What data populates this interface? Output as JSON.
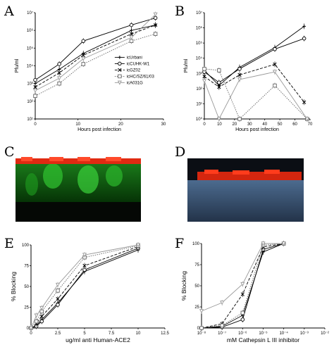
{
  "panel_labels": {
    "A": "A",
    "B": "B",
    "C": "C",
    "D": "D",
    "E": "E",
    "F": "F"
  },
  "chart_data": [
    {
      "panel": "A",
      "type": "line",
      "xlabel": "Hours post infection",
      "ylabel": "Pfu/ml",
      "y_scale": "log",
      "xlim": [
        0,
        32
      ],
      "ylim_exp": [
        1,
        7
      ],
      "xticks": [
        "0",
        "10",
        "20",
        "30"
      ],
      "yticks": [
        "10¹",
        "10²",
        "10³",
        "10⁴",
        "10⁵",
        "10⁶",
        "10⁷"
      ],
      "legend": [
        "icUrbani",
        "icCUHK-W1",
        "icGZ02",
        "icHC/SZ/61/03",
        "icA031G"
      ],
      "legend_position": "center-right",
      "series": [
        {
          "name": "icUrbani",
          "style": "solid",
          "marker": "plus",
          "x": [
            0,
            6,
            12,
            24,
            30
          ],
          "y": [
            3,
            3.8,
            4.7,
            6,
            6.3
          ]
        },
        {
          "name": "icCUHK-W1",
          "style": "solid",
          "marker": "circle",
          "x": [
            0,
            6,
            12,
            24,
            30
          ],
          "y": [
            3.2,
            4.1,
            5.4,
            6.3,
            6.7
          ]
        },
        {
          "name": "icGZ02",
          "style": "dashed",
          "marker": "x",
          "x": [
            0,
            6,
            12,
            24,
            30
          ],
          "y": [
            2.8,
            3.6,
            4.6,
            5.8,
            6.3
          ]
        },
        {
          "name": "icHC/SZ/61/03",
          "style": "dotted",
          "marker": "square",
          "x": [
            0,
            6,
            12,
            24,
            30
          ],
          "y": [
            2.3,
            3,
            4.1,
            5.4,
            5.8
          ]
        },
        {
          "name": "icA031G",
          "style": "solid-gray",
          "marker": "triangle-down",
          "x": [
            0,
            6,
            12,
            24,
            30
          ],
          "y": [
            2.6,
            3.3,
            4.4,
            5.6,
            6.9
          ]
        }
      ]
    },
    {
      "panel": "B",
      "type": "line",
      "xlabel": "Hours post infection",
      "ylabel": "Pfu/ml",
      "y_scale": "log",
      "xlim": [
        0,
        72
      ],
      "ylim_exp": [
        0,
        7
      ],
      "xticks": [
        "0",
        "10",
        "20",
        "30",
        "40",
        "50",
        "60",
        "70"
      ],
      "yticks": [
        "10⁰",
        "10¹",
        "10²",
        "10³",
        "10⁴",
        "10⁵",
        "10⁶",
        "10⁷"
      ],
      "series": [
        {
          "name": "icUrbani",
          "style": "solid",
          "marker": "plus",
          "x": [
            0,
            10,
            24,
            48,
            68
          ],
          "y": [
            3.2,
            2.2,
            3.4,
            4.7,
            6.1
          ]
        },
        {
          "name": "icCUHK-W1",
          "style": "solid",
          "marker": "circle",
          "x": [
            0,
            10,
            24,
            48,
            68
          ],
          "y": [
            3.1,
            2.4,
            3.3,
            4.6,
            5.3
          ]
        },
        {
          "name": "icGZ02",
          "style": "dashed",
          "marker": "x",
          "x": [
            0,
            10,
            24,
            48,
            68
          ],
          "y": [
            2.8,
            2.1,
            2.9,
            3.6,
            1.1
          ]
        },
        {
          "name": "icHC/SZ/61/03",
          "style": "dotted",
          "marker": "square",
          "x": [
            0,
            10,
            24,
            48,
            70
          ],
          "y": [
            3.3,
            3.2,
            0,
            2.2,
            0
          ]
        },
        {
          "name": "icA031G",
          "style": "solid-gray",
          "marker": "triangle-down",
          "x": [
            0,
            10,
            24,
            48,
            70
          ],
          "y": [
            2.5,
            0,
            2.6,
            3.1,
            0
          ]
        }
      ]
    },
    {
      "panel": "E",
      "type": "line",
      "xlabel": "ug/ml anti Human-ACE2",
      "ylabel": "% Blocking",
      "xlim": [
        0,
        12.5
      ],
      "ylim": [
        0,
        100
      ],
      "xticks": [
        "0",
        "2.5",
        "5",
        "7.5",
        "10",
        "12.5"
      ],
      "yticks": [
        "0",
        "25",
        "50",
        "75",
        "100"
      ],
      "series": [
        {
          "name": "icUrbani",
          "style": "solid",
          "marker": "plus",
          "x": [
            0,
            0.5,
            1,
            2.5,
            5,
            10
          ],
          "y": [
            0,
            3,
            10,
            30,
            68,
            94
          ]
        },
        {
          "name": "icCUHK-W1",
          "style": "solid",
          "marker": "circle",
          "x": [
            0,
            0.5,
            1,
            2.5,
            5,
            10
          ],
          "y": [
            0,
            2,
            8,
            28,
            70,
            96
          ]
        },
        {
          "name": "icGZ02",
          "style": "dashed",
          "marker": "x",
          "x": [
            0,
            0.5,
            1,
            2.5,
            5,
            10
          ],
          "y": [
            0,
            5,
            14,
            35,
            75,
            98
          ]
        },
        {
          "name": "icHC/SZ/61/03",
          "style": "dotted",
          "marker": "square",
          "x": [
            0,
            0.5,
            1,
            2.5,
            5,
            10
          ],
          "y": [
            0,
            8,
            20,
            45,
            85,
            99
          ]
        },
        {
          "name": "icA031G",
          "style": "solid-gray",
          "marker": "triangle-down",
          "x": [
            0,
            0.5,
            1,
            2.5,
            5,
            10
          ],
          "y": [
            0,
            15,
            24,
            52,
            88,
            100
          ]
        }
      ]
    },
    {
      "panel": "F",
      "type": "line",
      "xlabel": "mM Cathepsin L III inhibitor",
      "ylabel": "% Blocking",
      "x_scale": "log",
      "xlim_exp": [
        -8,
        -2
      ],
      "ylim": [
        0,
        100
      ],
      "xticks": [
        "10⁻⁸",
        "10⁻⁷",
        "10⁻⁶",
        "10⁻⁵",
        "10⁻⁴",
        "10⁻³",
        "10⁻²"
      ],
      "yticks": [
        "0",
        "25",
        "50",
        "75",
        "100"
      ],
      "series": [
        {
          "name": "icUrbani",
          "style": "solid",
          "marker": "plus",
          "x": [
            -8,
            -7,
            -6,
            -5,
            -4
          ],
          "y": [
            0,
            2,
            15,
            90,
            100
          ]
        },
        {
          "name": "icCUHK-W1",
          "style": "solid",
          "marker": "circle",
          "x": [
            -8,
            -7,
            -6,
            -5,
            -4
          ],
          "y": [
            0,
            1,
            10,
            93,
            100
          ]
        },
        {
          "name": "icGZ02",
          "style": "dashed",
          "marker": "x",
          "x": [
            -8,
            -7,
            -6,
            -5,
            -4
          ],
          "y": [
            0,
            5,
            40,
            96,
            100
          ]
        },
        {
          "name": "icHC/SZ/61/03",
          "style": "dotted",
          "marker": "square",
          "x": [
            -8,
            -7,
            -6,
            -5,
            -4
          ],
          "y": [
            0,
            3,
            18,
            98,
            100
          ]
        },
        {
          "name": "icA031G",
          "style": "solid-gray",
          "marker": "triangle-down",
          "x": [
            -8,
            -7,
            -6,
            -5,
            -4
          ],
          "y": [
            20,
            30,
            52,
            100,
            100
          ]
        }
      ]
    }
  ]
}
